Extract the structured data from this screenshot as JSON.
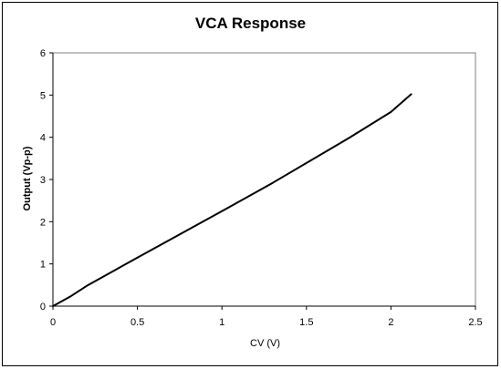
{
  "chart_data": {
    "type": "line",
    "title": "VCA Response",
    "xlabel": "CV (V)",
    "ylabel": "Output (Vp-p)",
    "xlim": [
      0,
      2.5
    ],
    "ylim": [
      0,
      6
    ],
    "xticks": [
      "0",
      "0.5",
      "1",
      "1.5",
      "2",
      "2.5"
    ],
    "yticks": [
      "0",
      "1",
      "2",
      "3",
      "4",
      "5",
      "6"
    ],
    "grid": false,
    "legend": "none",
    "series": [
      {
        "color": "#000000",
        "x": [
          0,
          0.1,
          0.2,
          0.5,
          1.0,
          1.3,
          1.75,
          2.0,
          2.12
        ],
        "y": [
          0,
          0.22,
          0.48,
          1.15,
          2.25,
          2.92,
          3.98,
          4.6,
          5.02
        ]
      }
    ]
  }
}
